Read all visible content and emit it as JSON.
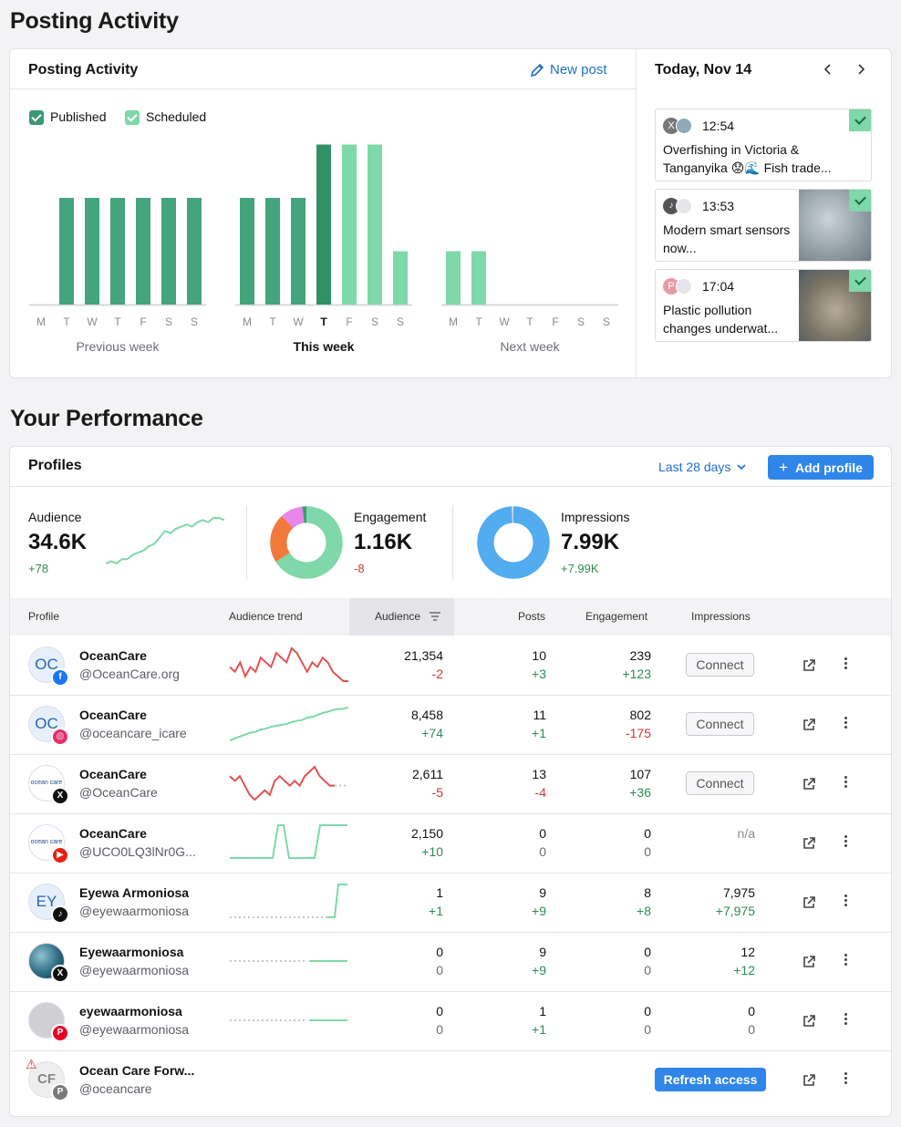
{
  "page_title": "Posting Activity",
  "activity": {
    "title": "Posting Activity",
    "new_post_label": "New post",
    "legend": {
      "published": "Published",
      "scheduled": "Scheduled"
    },
    "colors": {
      "published": "#44a47d",
      "scheduled": "#7ed8a9",
      "today": "#329068"
    }
  },
  "chart_data": {
    "type": "bar",
    "series": [
      {
        "name": "Published",
        "values": [
          0,
          1,
          1,
          1,
          1,
          1,
          1,
          1,
          1,
          1,
          0,
          0,
          0,
          0,
          0,
          0,
          0,
          0,
          0,
          0,
          0
        ]
      },
      {
        "name": "Scheduled",
        "values": [
          0,
          0,
          0,
          0,
          0,
          0,
          0,
          0,
          0,
          0,
          1,
          1,
          1,
          0.5,
          0,
          0,
          0,
          0,
          0,
          0,
          0
        ]
      }
    ],
    "published_scheduled_split": [
      {
        "day": "T",
        "published": 1.0,
        "scheduled": 0
      }
    ],
    "weeks": [
      {
        "label": "Previous week",
        "days": [
          "M",
          "T",
          "W",
          "T",
          "F",
          "S",
          "S"
        ],
        "values": [
          0,
          1,
          1,
          1,
          1,
          1,
          1
        ],
        "kind": [
          "p",
          "p",
          "p",
          "p",
          "p",
          "p",
          "p"
        ]
      },
      {
        "label": "This week",
        "days": [
          "M",
          "T",
          "W",
          "T",
          "F",
          "S",
          "S"
        ],
        "values": [
          1,
          1,
          1,
          1.5,
          1.5,
          1.5,
          0.5
        ],
        "kind": [
          "p",
          "p",
          "p",
          "today",
          "s",
          "s",
          "s"
        ]
      },
      {
        "label": "Next week",
        "days": [
          "M",
          "T",
          "W",
          "T",
          "F",
          "S",
          "S"
        ],
        "values": [
          0.5,
          0.5,
          0,
          0,
          0,
          0,
          0
        ],
        "kind": [
          "s",
          "s",
          "s",
          "s",
          "s",
          "s",
          "s"
        ]
      }
    ],
    "ylim": [
      0,
      1.5
    ]
  },
  "calendar": {
    "date_label": "Today, Nov 14",
    "prev_icon": "chevron-left-icon",
    "next_icon": "chevron-right-icon",
    "posts": [
      {
        "time": "12:54",
        "text": "Overfishing in Victoria & Tanganyika 😟🌊 Fish trade...",
        "networks": "x-icon",
        "has_image": false
      },
      {
        "time": "13:53",
        "text": "Modern smart sensors now...",
        "networks": "tiktok-icon",
        "has_image": true
      },
      {
        "time": "17:04",
        "text": "Plastic pollution changes underwat...",
        "networks": "pinterest-icon",
        "has_image": true
      }
    ]
  },
  "performance": {
    "title": "Your Performance",
    "profiles_label": "Profiles",
    "range_label": "Last 28 days",
    "add_profile_label": "Add profile",
    "metrics": {
      "audience": {
        "label": "Audience",
        "value": "34.6K",
        "delta": "+78",
        "trend": [
          3,
          4,
          3,
          5,
          5,
          7,
          8,
          9,
          11,
          12,
          15,
          18,
          17,
          19,
          20,
          21,
          20,
          22,
          23,
          22,
          24,
          24,
          23
        ]
      },
      "engagement": {
        "label": "Engagement",
        "value": "1.16K",
        "delta": "-8",
        "donut": [
          {
            "name": "green",
            "value": 66,
            "color": "#7ed8a9"
          },
          {
            "name": "orange",
            "value": 22,
            "color": "#f07a3b"
          },
          {
            "name": "pink",
            "value": 10,
            "color": "#e986ea"
          },
          {
            "name": "teal",
            "value": 2,
            "color": "#3e9b74"
          }
        ]
      },
      "impressions": {
        "label": "Impressions",
        "value": "7.99K",
        "delta": "+7.99K",
        "donut": [
          {
            "name": "blue",
            "value": 99,
            "color": "#53abf0"
          },
          {
            "name": "grey",
            "value": 1,
            "color": "#c9d7e4"
          }
        ]
      }
    },
    "columns": {
      "profile": "Profile",
      "trend": "Audience trend",
      "audience": "Audience",
      "posts": "Posts",
      "engagement": "Engagement",
      "impressions": "Impressions"
    },
    "rows": [
      {
        "name": "OceanCare",
        "handle": "@OceanCare.org",
        "avatar_text": "OC",
        "network": "facebook",
        "badge_color": "#1877f2",
        "badge_icon": "facebook-icon",
        "badge_glyph": "f",
        "trend_type": "red",
        "trend": [
          6,
          5,
          7,
          4,
          6,
          5,
          8,
          7,
          6,
          9,
          8,
          7,
          10,
          9,
          7,
          5,
          7,
          6,
          8,
          7,
          5,
          4,
          3,
          3
        ],
        "audience": "21,354",
        "audience_delta": "-2",
        "aud_color": "red",
        "posts": "10",
        "posts_delta": "+3",
        "posts_color": "green",
        "engagement": "239",
        "eng_delta": "+123",
        "eng_color": "green",
        "impressions": "Connect",
        "imp_delta": ""
      },
      {
        "name": "OceanCare",
        "handle": "@oceancare_icare",
        "avatar_text": "OC",
        "network": "instagram",
        "badge_color": "#e1306c",
        "badge_icon": "instagram-icon",
        "badge_glyph": "◎",
        "trend_type": "green",
        "trend": [
          1,
          1.5,
          2,
          2.5,
          3,
          3.2,
          3.8,
          4,
          4.5,
          4.7,
          5,
          5.2,
          5.7,
          6,
          6.2,
          6.8,
          7,
          7.5,
          8,
          8.3,
          8.8,
          9,
          9.1,
          9.4
        ],
        "audience": "8,458",
        "audience_delta": "+74",
        "aud_color": "green",
        "posts": "11",
        "posts_delta": "+1",
        "posts_color": "green",
        "engagement": "802",
        "eng_delta": "-175",
        "eng_color": "red",
        "impressions": "Connect",
        "imp_delta": ""
      },
      {
        "name": "OceanCare",
        "handle": "@OceanCare",
        "avatar_text": "ocean care",
        "network": "x",
        "badge_color": "#111111",
        "badge_icon": "x-icon",
        "badge_glyph": "X",
        "trend_type": "red",
        "trend": [
          7,
          6,
          7,
          5,
          3,
          2,
          3,
          4,
          3,
          6,
          7,
          6,
          5,
          6,
          5,
          7,
          8,
          9,
          7,
          6,
          5,
          5
        ],
        "audience": "2,611",
        "audience_delta": "-5",
        "aud_color": "red",
        "posts": "13",
        "posts_delta": "-4",
        "posts_color": "red",
        "engagement": "107",
        "eng_delta": "+36",
        "eng_color": "green",
        "impressions": "Connect",
        "imp_delta": ""
      },
      {
        "name": "OceanCare",
        "handle": "@UCO0LQ3lNr0G...",
        "avatar_text": "ocean care",
        "network": "youtube",
        "badge_color": "#e62117",
        "badge_icon": "youtube-icon",
        "badge_glyph": "▶",
        "trend_type": "green-step",
        "trend": [
          0,
          0,
          0,
          0,
          0,
          0,
          0,
          0,
          0,
          0,
          1,
          0,
          0,
          0,
          0,
          0,
          0,
          1,
          1,
          1,
          1,
          1,
          1,
          1
        ],
        "audience": "2,150",
        "audience_delta": "+10",
        "aud_color": "green",
        "posts": "0",
        "posts_delta": "0",
        "posts_color": "grey",
        "engagement": "0",
        "eng_delta": "0",
        "eng_color": "grey",
        "impressions": "n/a",
        "imp_delta": ""
      },
      {
        "name": "Eyewa Armoniosa",
        "handle": "@eyewaarmoniosa",
        "avatar_text": "EY",
        "network": "tiktok",
        "badge_color": "#111111",
        "badge_icon": "tiktok-icon",
        "badge_glyph": "♪",
        "trend_type": "dotted-step",
        "audience": "1",
        "audience_delta": "+1",
        "aud_color": "green",
        "posts": "9",
        "posts_delta": "+9",
        "posts_color": "green",
        "engagement": "8",
        "eng_delta": "+8",
        "eng_color": "green",
        "impressions": "7,975",
        "imp_delta": "+7,975",
        "imp_color": "green"
      },
      {
        "name": "Eyewaarmoniosa",
        "handle": "@eyewaarmoniosa",
        "avatar_text": "",
        "network": "x",
        "badge_color": "#111111",
        "badge_icon": "x-icon",
        "badge_glyph": "X",
        "trend_type": "dotted-flat",
        "audience": "0",
        "audience_delta": "0",
        "aud_color": "grey",
        "posts": "9",
        "posts_delta": "+9",
        "posts_color": "green",
        "engagement": "0",
        "eng_delta": "0",
        "eng_color": "grey",
        "impressions": "12",
        "imp_delta": "+12",
        "imp_color": "green"
      },
      {
        "name": "eyewaarmoniosa",
        "handle": "@eyewaarmoniosa",
        "avatar_text": "",
        "network": "pinterest",
        "badge_color": "#e60023",
        "badge_icon": "pinterest-icon",
        "badge_glyph": "P",
        "trend_type": "dotted-flat",
        "audience": "0",
        "audience_delta": "0",
        "aud_color": "grey",
        "posts": "1",
        "posts_delta": "+1",
        "posts_color": "green",
        "engagement": "0",
        "eng_delta": "0",
        "eng_color": "grey",
        "impressions": "0",
        "imp_delta": "0",
        "imp_color": "grey"
      },
      {
        "name": "Ocean Care Forw...",
        "handle": "@oceancare",
        "avatar_text": "CF",
        "network": "pinterest",
        "badge_color": "#7a7a7a",
        "badge_icon": "pinterest-icon",
        "badge_glyph": "P",
        "trend_type": "none",
        "refresh_label": "Refresh access"
      }
    ]
  }
}
